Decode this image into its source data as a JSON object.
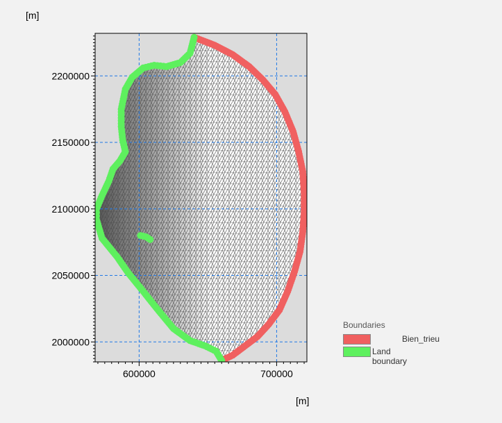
{
  "chart_data": {
    "type": "scatter",
    "title": "",
    "xlabel": "[m]",
    "ylabel": "[m]",
    "xlim": [
      568000,
      722000
    ],
    "ylim": [
      1985000,
      2232000
    ],
    "xticks": [
      600000,
      700000
    ],
    "yticks": [
      2000000,
      2050000,
      2100000,
      2150000,
      2200000
    ],
    "grid": true,
    "grid_style": "dashed-blue",
    "legend_position": "bottom-right",
    "legend_title": "Boundaries",
    "mesh": "triangular mesh fill",
    "series": [
      {
        "name": "Bien_trieu",
        "color": "#f06060",
        "points": [
          [
            640000,
            2229000
          ],
          [
            655000,
            2223000
          ],
          [
            668000,
            2216000
          ],
          [
            680000,
            2207000
          ],
          [
            690000,
            2197000
          ],
          [
            699000,
            2186000
          ],
          [
            706000,
            2173000
          ],
          [
            712000,
            2158000
          ],
          [
            716000,
            2143000
          ],
          [
            719000,
            2128000
          ],
          [
            720000,
            2112000
          ],
          [
            720000,
            2097000
          ],
          [
            719000,
            2083000
          ],
          [
            717000,
            2068000
          ],
          [
            713000,
            2053000
          ],
          [
            708000,
            2038000
          ],
          [
            702000,
            2024000
          ],
          [
            694000,
            2013000
          ],
          [
            686000,
            2004000
          ],
          [
            677000,
            1997000
          ],
          [
            668000,
            1990000
          ],
          [
            660000,
            1986000
          ]
        ]
      },
      {
        "name": "Land boundary",
        "color": "#5ef05e",
        "points": [
          [
            660000,
            1986000
          ],
          [
            656000,
            1993000
          ],
          [
            648000,
            1997000
          ],
          [
            637000,
            2001000
          ],
          [
            625000,
            2010000
          ],
          [
            613000,
            2025000
          ],
          [
            603000,
            2038000
          ],
          [
            592000,
            2052000
          ],
          [
            584000,
            2064000
          ],
          [
            573000,
            2078000
          ],
          [
            569000,
            2092000
          ],
          [
            569000,
            2100000
          ],
          [
            573000,
            2110000
          ],
          [
            578000,
            2121000
          ],
          [
            581000,
            2130000
          ],
          [
            586000,
            2136000
          ],
          [
            590000,
            2143000
          ],
          [
            588000,
            2152000
          ],
          [
            587000,
            2162000
          ],
          [
            587000,
            2175000
          ],
          [
            590000,
            2190000
          ],
          [
            595000,
            2199000
          ],
          [
            603000,
            2206000
          ],
          [
            611000,
            2208000
          ],
          [
            620000,
            2207000
          ],
          [
            630000,
            2210000
          ],
          [
            637000,
            2217000
          ],
          [
            640000,
            2229000
          ]
        ]
      },
      {
        "name": "Land boundary",
        "color": "#5ef05e",
        "points": [
          [
            601000,
            2080000
          ],
          [
            605000,
            2079000
          ],
          [
            608000,
            2077000
          ]
        ]
      }
    ]
  },
  "axis": {
    "y_unit": "[m]",
    "x_unit": "[m]",
    "x_tick_labels": [
      "600000",
      "700000"
    ],
    "y_tick_labels": [
      "2000000",
      "2050000",
      "2100000",
      "2150000",
      "2200000"
    ]
  },
  "legend": {
    "title": "Boundaries",
    "items": [
      {
        "label": "Bien_trieu",
        "color": "#f06060"
      },
      {
        "label": "Land boundary",
        "color": "#5ef05e"
      }
    ]
  }
}
